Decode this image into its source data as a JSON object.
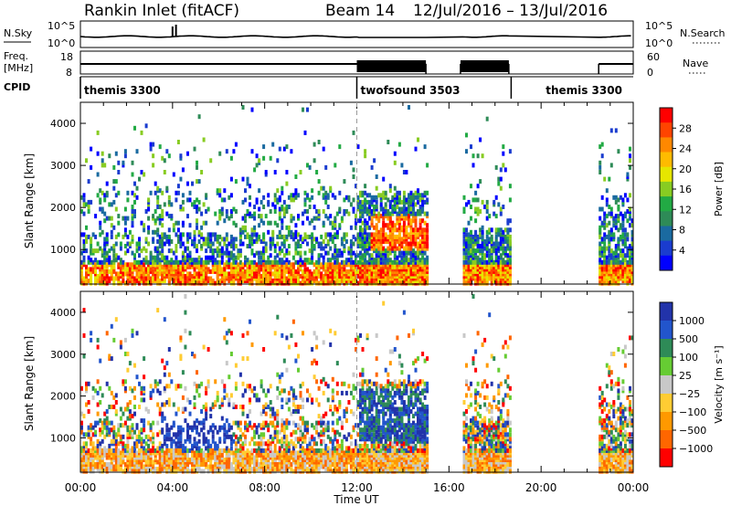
{
  "header": {
    "station": "Rankin Inlet (fitACF)",
    "beam": "Beam 14",
    "date_range": "12/Jul/2016 – 13/Jul/2016"
  },
  "top_panels": {
    "nsky_label": "N.Sky",
    "nsky_ticks": [
      "10^5",
      "10^0"
    ],
    "nsearch_label": "N.Search",
    "nsearch_ticks": [
      "10^5",
      "10^0"
    ],
    "freq_label": "Freq.",
    "freq_unit": "[MHz]",
    "freq_ticks": [
      "18",
      "8"
    ],
    "nave_label": "Nave",
    "nave_ticks": [
      "60",
      "0"
    ],
    "cpid_label": "CPID",
    "cpid_segments": [
      {
        "label": "themis 3300",
        "start_hour": 0,
        "end_hour": 12
      },
      {
        "label": "twofsound 3503",
        "start_hour": 12,
        "end_hour": 18.7
      },
      {
        "label": "themis 3300",
        "start_hour": 18.7,
        "end_hour": 24
      }
    ],
    "data_gaps_hours": [
      [
        15.0,
        16.5
      ],
      [
        18.6,
        22.5
      ]
    ]
  },
  "chart_data": [
    {
      "type": "heatmap",
      "name": "power",
      "ylabel": "Slant Range [km]",
      "yticks": [
        1000,
        2000,
        3000,
        4000
      ],
      "ylim": [
        180,
        4500
      ],
      "xlim": [
        0,
        24
      ],
      "xticks": [
        "00:00",
        "04:00",
        "08:00",
        "12:00",
        "16:00",
        "20:00",
        "00:00"
      ],
      "colorbar": {
        "label": "Power [dB]",
        "ticks": [
          "28",
          "24",
          "20",
          "16",
          "12",
          "8",
          "4"
        ],
        "colors": [
          "#ff0000",
          "#ff4400",
          "#ff8800",
          "#ffbb00",
          "#e6e600",
          "#88cc22",
          "#22aa44",
          "#2e8b57",
          "#1a6aa0",
          "#1a3ccf",
          "#0000ff"
        ]
      }
    },
    {
      "type": "heatmap",
      "name": "velocity",
      "ylabel": "Slant Range [km]",
      "yticks": [
        1000,
        2000,
        3000,
        4000
      ],
      "ylim": [
        180,
        4500
      ],
      "xlim": [
        0,
        24
      ],
      "xticks": [
        "00:00",
        "04:00",
        "08:00",
        "12:00",
        "16:00",
        "20:00",
        "00:00"
      ],
      "xlabel": "Time UT",
      "colorbar": {
        "label": "Velocity [m s⁻¹]",
        "ticks": [
          "1000",
          "500",
          "100",
          "25",
          "−25",
          "−100",
          "−500",
          "−1000"
        ],
        "colors": [
          "#2233aa",
          "#2255cc",
          "#2e8b57",
          "#66cc33",
          "#c8c8c8",
          "#ffcc33",
          "#ff9900",
          "#ff6600",
          "#ff0000"
        ]
      }
    }
  ]
}
